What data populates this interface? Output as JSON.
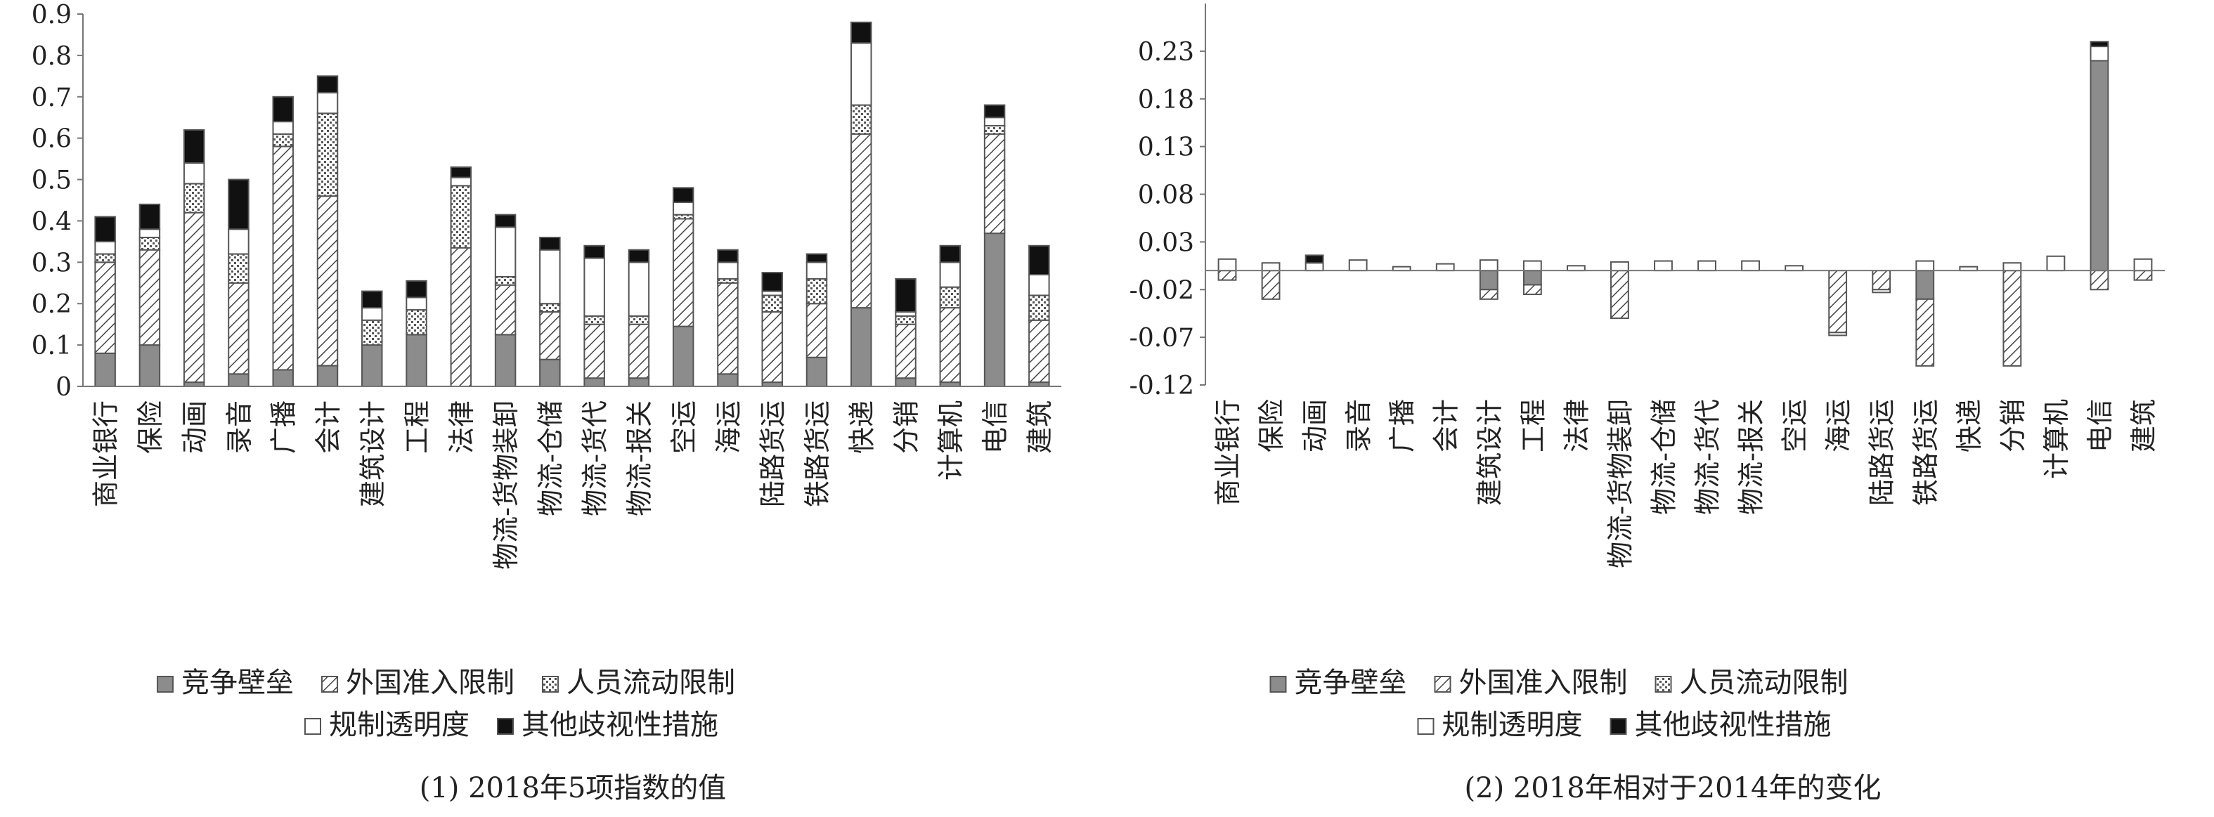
{
  "colors": {
    "barrier": "#8c8c8c",
    "hatch": "#444444",
    "outline": "#555555",
    "black": "#111111",
    "axis": "#777777"
  },
  "legend": {
    "items": [
      {
        "key": "barrier",
        "label": "竞争壁垒",
        "icon": "solid-gray-square"
      },
      {
        "key": "foreign",
        "label": "外国准入限制",
        "icon": "diagonal-hatch-square"
      },
      {
        "key": "people",
        "label": "人员流动限制",
        "icon": "dotted-hatch-square"
      },
      {
        "key": "transparency",
        "label": "规制透明度",
        "icon": "white-square"
      },
      {
        "key": "other",
        "label": "其他歧视性措施",
        "icon": "black-square"
      }
    ]
  },
  "chart_data": [
    {
      "type": "bar",
      "stacked": true,
      "caption": "(1) 2018年5项指数的值",
      "title": "",
      "xlabel": "",
      "ylabel": "",
      "ylim": [
        0,
        0.9
      ],
      "yticks": [
        "0",
        "0.1",
        "0.2",
        "0.3",
        "0.4",
        "0.5",
        "0.6",
        "0.7",
        "0.8",
        "0.9"
      ],
      "grid": false,
      "legend_position": "bottom",
      "categories": [
        "商业银行",
        "保险",
        "动画",
        "录音",
        "广播",
        "会计",
        "建筑设计",
        "工程",
        "法律",
        "物流-货物装卸",
        "物流-仓储",
        "物流-货代",
        "物流-报关",
        "空运",
        "海运",
        "陆路货运",
        "铁路货运",
        "快递",
        "分销",
        "计算机",
        "电信",
        "建筑"
      ],
      "series": [
        {
          "name": "竞争壁垒",
          "values": [
            0.08,
            0.1,
            0.01,
            0.03,
            0.04,
            0.05,
            0.1,
            0.125,
            0.0,
            0.125,
            0.065,
            0.02,
            0.02,
            0.145,
            0.03,
            0.01,
            0.07,
            0.19,
            0.02,
            0.01,
            0.37,
            0.01
          ]
        },
        {
          "name": "外国准入限制",
          "values": [
            0.22,
            0.23,
            0.41,
            0.22,
            0.54,
            0.41,
            0.0,
            0.0,
            0.335,
            0.12,
            0.115,
            0.13,
            0.13,
            0.26,
            0.22,
            0.17,
            0.13,
            0.42,
            0.13,
            0.18,
            0.24,
            0.15
          ]
        },
        {
          "name": "人员流动限制",
          "values": [
            0.02,
            0.03,
            0.07,
            0.07,
            0.03,
            0.2,
            0.06,
            0.06,
            0.15,
            0.02,
            0.02,
            0.02,
            0.02,
            0.01,
            0.01,
            0.04,
            0.06,
            0.07,
            0.02,
            0.05,
            0.02,
            0.06
          ]
        },
        {
          "name": "规制透明度",
          "values": [
            0.03,
            0.02,
            0.05,
            0.06,
            0.03,
            0.05,
            0.03,
            0.03,
            0.02,
            0.12,
            0.13,
            0.14,
            0.13,
            0.03,
            0.04,
            0.01,
            0.04,
            0.15,
            0.01,
            0.06,
            0.02,
            0.05
          ]
        },
        {
          "name": "其他歧视性措施",
          "values": [
            0.06,
            0.06,
            0.08,
            0.12,
            0.06,
            0.04,
            0.04,
            0.04,
            0.025,
            0.03,
            0.03,
            0.03,
            0.03,
            0.035,
            0.03,
            0.045,
            0.02,
            0.05,
            0.08,
            0.04,
            0.03,
            0.07
          ]
        }
      ]
    },
    {
      "type": "bar",
      "stacked": true,
      "caption": "(2) 2018年相对于2014年的变化",
      "title": "",
      "xlabel": "",
      "ylabel": "",
      "ylim": [
        -0.12,
        0.28
      ],
      "yticks": [
        "-0.12",
        "-0.07",
        "-0.02",
        "0.03",
        "0.08",
        "0.13",
        "0.18",
        "0.23"
      ],
      "grid": false,
      "legend_position": "bottom",
      "categories": [
        "商业银行",
        "保险",
        "动画",
        "录音",
        "广播",
        "会计",
        "建筑设计",
        "工程",
        "法律",
        "物流-货物装卸",
        "物流-仓储",
        "物流-货代",
        "物流-报关",
        "空运",
        "海运",
        "陆路货运",
        "铁路货运",
        "快递",
        "分销",
        "计算机",
        "电信",
        "建筑"
      ],
      "series": [
        {
          "name": "竞争壁垒",
          "values": [
            0,
            0,
            0,
            0,
            0,
            0,
            -0.02,
            -0.015,
            0,
            0,
            0,
            0,
            0,
            0,
            0,
            0,
            -0.03,
            0,
            0,
            0,
            0.22,
            0
          ]
        },
        {
          "name": "外国准入限制",
          "values": [
            -0.01,
            -0.03,
            0,
            0,
            0,
            0,
            -0.01,
            -0.01,
            0,
            -0.05,
            0,
            0,
            0,
            0,
            -0.065,
            -0.02,
            -0.07,
            0,
            -0.1,
            0,
            -0.02,
            -0.01
          ]
        },
        {
          "name": "人员流动限制",
          "values": [
            0,
            0,
            0,
            0,
            0,
            0,
            0,
            0,
            0,
            0,
            0,
            0,
            0,
            0,
            0,
            0,
            0,
            0,
            0,
            0,
            0,
            0
          ]
        },
        {
          "name": "规制透明度",
          "values": [
            0.012,
            0.008,
            0.008,
            0.011,
            0.004,
            0.007,
            0.011,
            0.01,
            0.005,
            0.009,
            0.01,
            0.01,
            0.01,
            0.005,
            -0.003,
            -0.003,
            0.01,
            0.004,
            0.008,
            0.015,
            0.015,
            0.012
          ]
        },
        {
          "name": "其他歧视性措施",
          "values": [
            0,
            0,
            0.008,
            0,
            0,
            0,
            0,
            0,
            0,
            0,
            0,
            0,
            0,
            0,
            0,
            0,
            0,
            0,
            0,
            0,
            0.005,
            0
          ]
        }
      ]
    }
  ]
}
